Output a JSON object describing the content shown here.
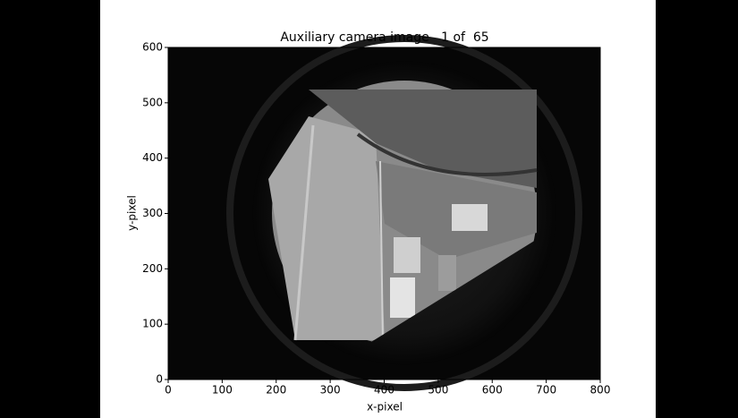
{
  "chart_data": {
    "type": "image",
    "title": "Auxiliary camera image   1 of  65",
    "xlabel": "x-pixel",
    "ylabel": "y-pixel",
    "xlim": [
      0,
      800
    ],
    "ylim": [
      0,
      600
    ],
    "xticks": [
      0,
      100,
      200,
      300,
      400,
      500,
      600,
      700,
      800
    ],
    "yticks": [
      0,
      100,
      200,
      300,
      400,
      500,
      600
    ]
  }
}
